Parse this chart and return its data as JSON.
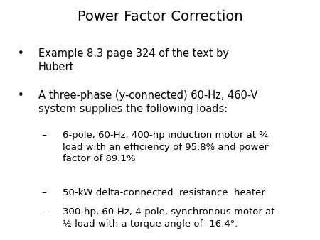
{
  "title": "Power Factor Correction",
  "title_fontsize": 14,
  "background_color": "#ffffff",
  "text_color": "#000000",
  "bullet1": "Example 8.3 page 324 of the text by\nHubert",
  "bullet2": "A three-phase (y-connected) 60-Hz, 460-V\nsystem supplies the following loads:",
  "sub1": "6-pole, 60-Hz, 400-hp induction motor at ¾\nload with an efficiency of 95.8% and power\nfactor of 89.1%",
  "sub2": "50-kW delta-connected  resistance  heater",
  "sub3": "300-hp, 60-Hz, 4-pole, synchronous motor at\n½ load with a torque angle of -16.4°.",
  "body_fontsize": 10.5,
  "sub_fontsize": 9.5
}
